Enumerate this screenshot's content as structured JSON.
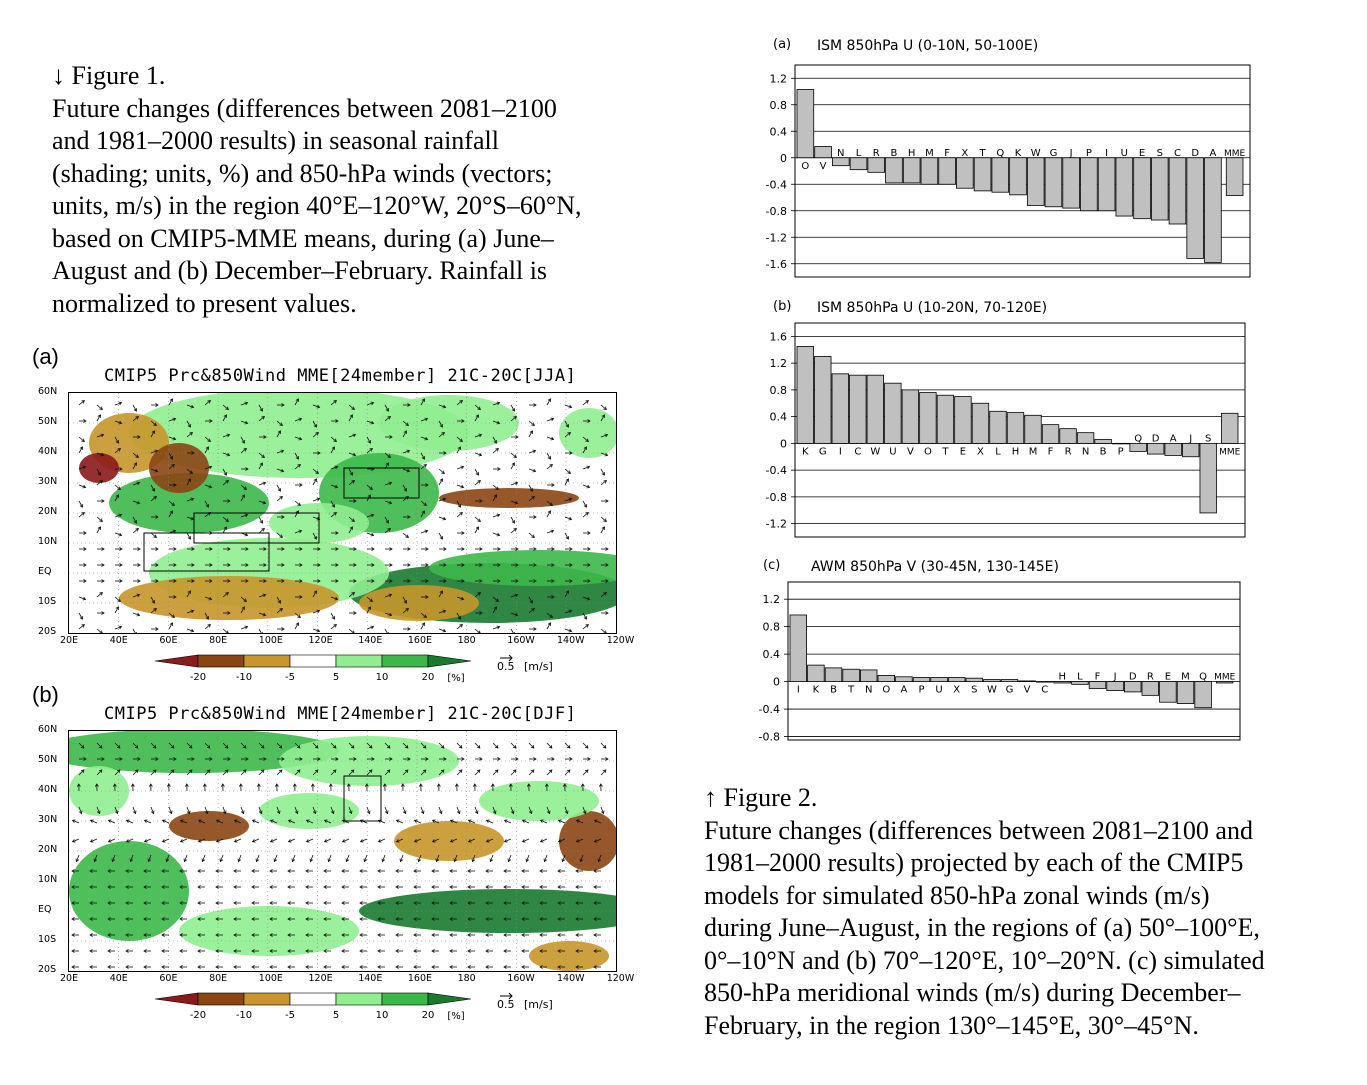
{
  "figure1": {
    "caption": [
      "↓ Figure 1.",
      " Future changes (differences between 2081–2100",
      "and 1981–2000 results) in seasonal rainfall",
      "(shading; units, %) and 850-hPa winds (vectors;",
      "units, m/s) in the region 40°E–120°W, 20°S–60°N,",
      "based on CMIP5-MME means, during (a) June–",
      "August and (b) December–February. Rainfall is",
      "normalized to present values."
    ],
    "panel_a_label": "(a)",
    "panel_b_label": "(b)",
    "panel_a_title": "CMIP5 Prc&850Wind MME[24member] 21C-20C[JJA]",
    "panel_b_title": "CMIP5 Prc&850Wind MME[24member] 21C-20C[DJF]",
    "lat_labels": [
      "60N",
      "50N",
      "40N",
      "30N",
      "20N",
      "10N",
      "EQ",
      "10S",
      "20S"
    ],
    "lon_labels": [
      "20E",
      "40E",
      "60E",
      "80E",
      "100E",
      "120E",
      "140E",
      "160E",
      "180",
      "160W",
      "140W",
      "120W"
    ],
    "colorbar_labels": [
      "-20",
      "-10",
      "-5",
      "5",
      "10",
      "20"
    ],
    "colorbar_unit": "[%]",
    "colorbar_colors": [
      "#8b1a1a",
      "#8b4513",
      "#c8962a",
      "#ffffff",
      "#90ee90",
      "#3cb84a",
      "#1a7a30"
    ],
    "vector_ref_value": "0.5",
    "vector_ref_unit": "[m/s]"
  },
  "figure2": {
    "caption": [
      "↑ Figure 2.",
      "Future changes (differences between 2081–2100 and",
      "1981–2000 results) projected by each of the CMIP5",
      "models for simulated 850-hPa zonal winds (m/s)",
      "during June–August, in the regions of (a) 50°–100°E,",
      "0°–10°N and (b) 70°–120°E, 10°–20°N. (c) simulated",
      "850-hPa meridional winds (m/s) during December–",
      "February, in the region 130°–145°E, 30°–45°N."
    ]
  },
  "chart_data": [
    {
      "type": "bar",
      "panel": "(a)",
      "title": "ISM 850hPa U (0-10N, 50-100E)",
      "categories": [
        "O",
        "V",
        "N",
        "L",
        "R",
        "B",
        "H",
        "M",
        "F",
        "X",
        "T",
        "Q",
        "K",
        "W",
        "G",
        "J",
        "P",
        "I",
        "U",
        "E",
        "S",
        "C",
        "D",
        "A",
        "MME"
      ],
      "values": [
        1.03,
        0.17,
        -0.12,
        -0.18,
        -0.22,
        -0.38,
        -0.38,
        -0.4,
        -0.4,
        -0.46,
        -0.5,
        -0.52,
        -0.56,
        -0.72,
        -0.74,
        -0.76,
        -0.8,
        -0.8,
        -0.88,
        -0.92,
        -0.94,
        -1.0,
        -1.52,
        -1.58,
        -0.57
      ],
      "yticks": [
        "1.2",
        "0.8",
        "0.4",
        "0",
        "-0.4",
        "-0.8",
        "-1.2",
        "-1.6"
      ],
      "ylim": [
        -1.8,
        1.4
      ],
      "bar_color": "#c0c0c0",
      "grid": true
    },
    {
      "type": "bar",
      "panel": "(b)",
      "title": "ISM 850hPa U (10-20N, 70-120E)",
      "categories": [
        "K",
        "G",
        "I",
        "C",
        "W",
        "U",
        "V",
        "O",
        "T",
        "E",
        "X",
        "L",
        "H",
        "M",
        "F",
        "R",
        "N",
        "B",
        "P",
        "Q",
        "D",
        "A",
        "J",
        "S",
        "MME"
      ],
      "values": [
        1.45,
        1.3,
        1.04,
        1.02,
        1.02,
        0.9,
        0.8,
        0.76,
        0.72,
        0.7,
        0.6,
        0.48,
        0.46,
        0.42,
        0.28,
        0.22,
        0.16,
        0.06,
        0.0,
        -0.12,
        -0.16,
        -0.18,
        -0.2,
        -1.04,
        0.45
      ],
      "yticks": [
        "1.6",
        "1.2",
        "0.8",
        "0.4",
        "0",
        "-0.4",
        "-0.8",
        "-1.2"
      ],
      "ylim": [
        -1.4,
        1.8
      ],
      "bar_color": "#c0c0c0",
      "grid": true
    },
    {
      "type": "bar",
      "panel": "(c)",
      "title": "AWM 850hPa V (30-45N, 130-145E)",
      "categories": [
        "I",
        "K",
        "B",
        "T",
        "N",
        "O",
        "A",
        "P",
        "U",
        "X",
        "S",
        "W",
        "G",
        "V",
        "C",
        "H",
        "L",
        "F",
        "J",
        "D",
        "R",
        "E",
        "M",
        "Q",
        "MME"
      ],
      "values": [
        0.97,
        0.24,
        0.2,
        0.18,
        0.17,
        0.09,
        0.07,
        0.06,
        0.06,
        0.06,
        0.05,
        0.03,
        0.03,
        0.01,
        0.0,
        -0.02,
        -0.04,
        -0.1,
        -0.13,
        -0.15,
        -0.2,
        -0.3,
        -0.32,
        -0.38,
        -0.02
      ],
      "yticks": [
        "1.2",
        "0.8",
        "0.4",
        "0",
        "-0.4",
        "-0.8"
      ],
      "ylim": [
        -0.85,
        1.45
      ],
      "bar_color": "#c0c0c0",
      "grid": true
    }
  ]
}
